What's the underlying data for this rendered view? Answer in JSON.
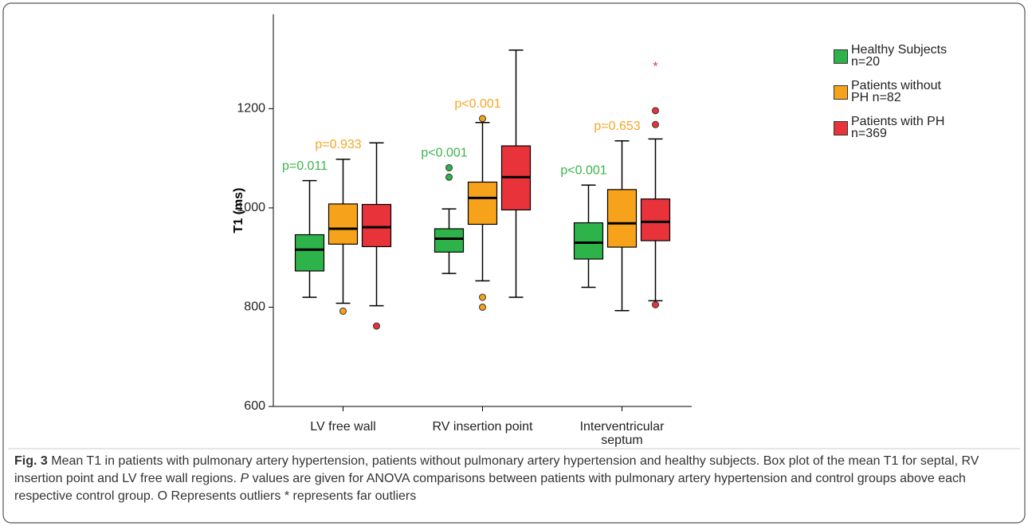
{
  "chart_data": {
    "type": "box",
    "y_label": "T1 (ms)",
    "categories": [
      "LV free wall",
      "RV insertion point",
      "Interventricular\nseptum"
    ],
    "ylim": [
      600,
      1390
    ],
    "yticks": [
      600,
      800,
      1000,
      1200
    ],
    "series": [
      {
        "name": "Healthy Subjects\nn=20",
        "color": "#2db34a",
        "boxes": [
          {
            "low": 820,
            "q1": 873,
            "median": 916,
            "q3": 946,
            "high": 1055,
            "outliers": [],
            "far_outliers": []
          },
          {
            "low": 868,
            "q1": 911,
            "median": 938,
            "q3": 958,
            "high": 998,
            "outliers": [
              1062,
              1081
            ],
            "far_outliers": []
          },
          {
            "low": 840,
            "q1": 897,
            "median": 930,
            "q3": 970,
            "high": 1046,
            "outliers": [],
            "far_outliers": []
          }
        ]
      },
      {
        "name": "Patients without\nPH n=82",
        "color": "#f7a21b",
        "boxes": [
          {
            "low": 808,
            "q1": 927,
            "median": 958,
            "q3": 1008,
            "high": 1098,
            "outliers": [
              792
            ],
            "far_outliers": []
          },
          {
            "low": 853,
            "q1": 967,
            "median": 1020,
            "q3": 1052,
            "high": 1172,
            "outliers": [
              1180,
              820,
              800
            ],
            "far_outliers": []
          },
          {
            "low": 793,
            "q1": 921,
            "median": 969,
            "q3": 1037,
            "high": 1135,
            "outliers": [],
            "far_outliers": []
          }
        ]
      },
      {
        "name": "Patients with PH\nn=369",
        "color": "#e8333b",
        "boxes": [
          {
            "low": 803,
            "q1": 922,
            "median": 961,
            "q3": 1007,
            "high": 1131,
            "outliers": [
              762
            ],
            "far_outliers": []
          },
          {
            "low": 820,
            "q1": 996,
            "median": 1062,
            "q3": 1125,
            "high": 1318,
            "outliers": [],
            "far_outliers": []
          },
          {
            "low": 813,
            "q1": 934,
            "median": 972,
            "q3": 1018,
            "high": 1139,
            "outliers": [
              1168,
              1196,
              805
            ],
            "far_outliers": [
              1290
            ]
          }
        ]
      }
    ],
    "annotations": [
      {
        "text": "p=0.011",
        "color": "#3cb44b",
        "category": 0,
        "series": 0
      },
      {
        "text": "p=0.933",
        "color": "#f5a623",
        "category": 0,
        "series": 1
      },
      {
        "text": "p<0.001",
        "color": "#3cb44b",
        "category": 1,
        "series": 0
      },
      {
        "text": "p<0.001",
        "color": "#f5a623",
        "category": 1,
        "series": 1
      },
      {
        "text": "p<0.001",
        "color": "#3cb44b",
        "category": 2,
        "series": 0
      },
      {
        "text": "p=0.653",
        "color": "#f5a623",
        "category": 2,
        "series": 1
      }
    ]
  },
  "caption": {
    "label": "Fig. 3",
    "text": "Mean T1 in patients with pulmonary artery hypertension, patients without pulmonary artery hypertension and healthy subjects. Box plot of the mean T1 for septal, RV insertion point and LV free wall regions.",
    "italic": "P",
    "rest": "values are given for ANOVA comparisons between patients with pulmonary artery hypertension and control groups above each respective control group. O Represents outliers * represents far outliers"
  }
}
